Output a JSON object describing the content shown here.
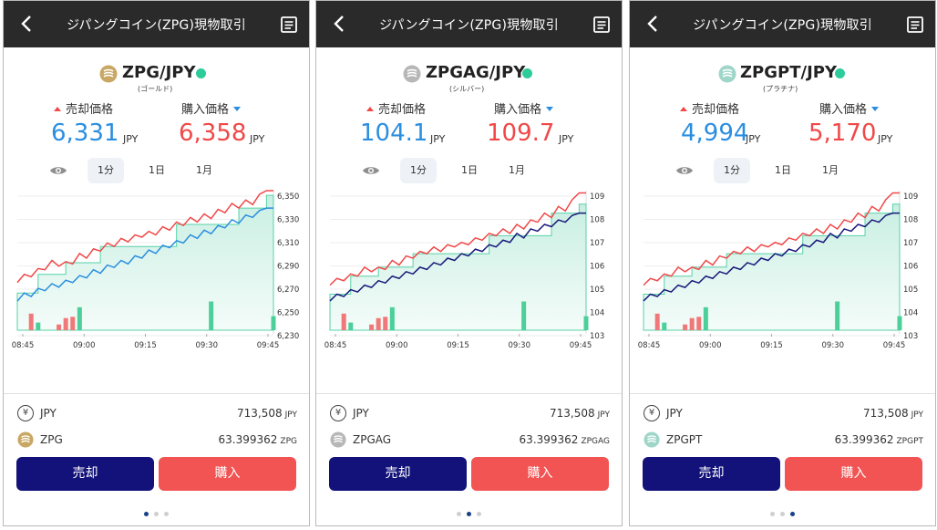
{
  "colors": {
    "header": "#2a2a2a",
    "sell": "#2a8ee0",
    "buy": "#f04848",
    "sell_button": "#12127a",
    "buy_button": "#f25454",
    "status_dot": "#2ecc9a",
    "gold": "#c9a765",
    "silver": "#b7b7b7",
    "platinum": "#9fd6c9"
  },
  "panels": [
    {
      "header": {
        "title": "ジパングコイン(ZPG)現物取引",
        "back_icon": "chevron-left-icon",
        "menu_icon": "document-icon"
      },
      "symbol": {
        "pair": "ZPG/JPY",
        "sub": "(ゴールド)",
        "coin_icon": "zpg-coin-icon"
      },
      "prices": {
        "sell_label": "売却価格",
        "buy_label": "購入価格",
        "sell_value": "6,331",
        "buy_value": "6,358",
        "unit": "JPY"
      },
      "tabs": [
        "1分",
        "1日",
        "1月"
      ],
      "chart_data": {
        "type": "line",
        "x_ticks": [
          "08:45",
          "09:00",
          "09:15",
          "09:30",
          "09:45"
        ],
        "y_ticks": [
          "6,350",
          "6,330",
          "6,310",
          "6,290",
          "6,270",
          "6,250",
          "6,230"
        ],
        "ylim": [
          6230,
          6350
        ],
        "series": [
          {
            "values": [
              6271,
              6278,
              6276,
              6283,
              6282,
              6290,
              6285,
              6289,
              6287,
              6296,
              6292,
              6300,
              6298,
              6305,
              6302,
              6309,
              6306,
              6312,
              6310,
              6315,
              6312,
              6319,
              6316,
              6323,
              6320,
              6327,
              6323,
              6330,
              6326,
              6334,
              6331,
              6339,
              6335,
              6342,
              6338,
              6347,
              6350,
              6350
            ]
          },
          {
            "values": [
              6255,
              6262,
              6259,
              6266,
              6264,
              6270,
              6267,
              6273,
              6271,
              6277,
              6275,
              6282,
              6279,
              6286,
              6284,
              6290,
              6287,
              6294,
              6292,
              6299,
              6296,
              6303,
              6301,
              6307,
              6305,
              6312,
              6309,
              6316,
              6313,
              6320,
              6318,
              6325,
              6322,
              6329,
              6327,
              6333,
              6335,
              6335
            ]
          }
        ],
        "band": [
          6262,
          6262,
          6262,
          6278,
          6278,
          6278,
          6278,
          6288,
          6288,
          6288,
          6288,
          6288,
          6302,
          6302,
          6302,
          6302,
          6302,
          6302,
          6302,
          6302,
          6302,
          6302,
          6302,
          6321,
          6321,
          6321,
          6321,
          6321,
          6321,
          6321,
          6321,
          6321,
          6335,
          6335,
          6335,
          6335,
          6346,
          6346
        ],
        "volumes": [
          0,
          2.5,
          1,
          0,
          0,
          0,
          0,
          0,
          0,
          0,
          0,
          0,
          0,
          0,
          0,
          0,
          0,
          0,
          0,
          0,
          0,
          0,
          0,
          0,
          0,
          0,
          0,
          0,
          0,
          0,
          0,
          0,
          0,
          0,
          0,
          0,
          0,
          0
        ],
        "bars": [
          {
            "i": 2,
            "v": 2.6,
            "side": "sell"
          },
          {
            "i": 3,
            "v": 1.2,
            "side": "buy"
          },
          {
            "i": 6,
            "v": 0.9,
            "side": "sell"
          },
          {
            "i": 7,
            "v": 1.9,
            "side": "sell"
          },
          {
            "i": 8,
            "v": 2.1,
            "side": "sell"
          },
          {
            "i": 9,
            "v": 3.6,
            "side": "buy"
          },
          {
            "i": 28,
            "v": 4.5,
            "side": "buy"
          },
          {
            "i": 37,
            "v": 2.2,
            "side": "buy"
          }
        ]
      },
      "balances": [
        {
          "currency": "JPY",
          "amount": "713,508",
          "unit": "JPY",
          "icon": "yen-icon"
        },
        {
          "currency": "ZPG",
          "amount": "63.399362",
          "unit": "ZPG",
          "icon": "zpg-coin-icon"
        }
      ],
      "actions": {
        "sell": "売却",
        "buy": "購入"
      },
      "pager": {
        "active": 0
      }
    },
    {
      "header": {
        "title": "ジパングコイン(ZPG)現物取引",
        "back_icon": "chevron-left-icon",
        "menu_icon": "document-icon"
      },
      "symbol": {
        "pair": "ZPGAG/JPY",
        "sub": "(シルバー)",
        "coin_icon": "zpgag-coin-icon"
      },
      "prices": {
        "sell_label": "売却価格",
        "buy_label": "購入価格",
        "sell_value": "104.1",
        "buy_value": "109.7",
        "unit": "JPY"
      },
      "tabs": [
        "1分",
        "1日",
        "1月"
      ],
      "chart_data": {
        "type": "line",
        "x_ticks": [
          "08:45",
          "09:00",
          "09:15",
          "09:30",
          "09:45"
        ],
        "y_ticks": [
          "109",
          "108",
          "107",
          "106",
          "105",
          "104",
          "103"
        ],
        "ylim": [
          103,
          109.2
        ],
        "series": [
          {
            "values": [
              105,
              105.3,
              105.2,
              105.5,
              105.4,
              105.8,
              105.6,
              105.8,
              105.7,
              106.1,
              105.9,
              106.3,
              106.2,
              106.5,
              106.4,
              106.7,
              106.5,
              106.8,
              106.7,
              106.9,
              106.8,
              107.1,
              107,
              107.3,
              107.2,
              107.5,
              107.3,
              107.7,
              107.5,
              107.9,
              107.8,
              108.2,
              108,
              108.5,
              108.3,
              108.8,
              109.1,
              109.1
            ]
          },
          {
            "values": [
              104.3,
              104.6,
              104.5,
              104.8,
              104.7,
              105,
              104.9,
              105.2,
              105.1,
              105.4,
              105.3,
              105.6,
              105.5,
              105.8,
              105.7,
              106,
              105.9,
              106.2,
              106.1,
              106.4,
              106.3,
              106.6,
              106.5,
              106.8,
              106.7,
              107,
              106.9,
              107.3,
              107.1,
              107.5,
              107.4,
              107.7,
              107.6,
              107.9,
              107.8,
              108.1,
              108.2,
              108.2
            ]
          }
        ],
        "band": [
          104.6,
          104.6,
          104.6,
          105.4,
          105.4,
          105.4,
          105.4,
          105.8,
          105.8,
          105.8,
          105.8,
          105.8,
          106.4,
          106.4,
          106.4,
          106.4,
          106.4,
          106.4,
          106.4,
          106.4,
          106.4,
          106.4,
          106.4,
          107.2,
          107.2,
          107.2,
          107.2,
          107.2,
          107.2,
          107.2,
          107.2,
          107.2,
          108.2,
          108.2,
          108.2,
          108.2,
          108.6,
          108.6
        ],
        "bars": [
          {
            "i": 2,
            "v": 2.6,
            "side": "sell"
          },
          {
            "i": 3,
            "v": 1.2,
            "side": "buy"
          },
          {
            "i": 6,
            "v": 0.9,
            "side": "sell"
          },
          {
            "i": 7,
            "v": 1.9,
            "side": "sell"
          },
          {
            "i": 8,
            "v": 2.1,
            "side": "sell"
          },
          {
            "i": 9,
            "v": 3.6,
            "side": "buy"
          },
          {
            "i": 28,
            "v": 4.5,
            "side": "buy"
          },
          {
            "i": 37,
            "v": 2.2,
            "side": "buy"
          }
        ]
      },
      "balances": [
        {
          "currency": "JPY",
          "amount": "713,508",
          "unit": "JPY",
          "icon": "yen-icon"
        },
        {
          "currency": "ZPGAG",
          "amount": "63.399362",
          "unit": "ZPGAG",
          "icon": "zpgag-coin-icon"
        }
      ],
      "actions": {
        "sell": "売却",
        "buy": "購入"
      },
      "pager": {
        "active": 1
      }
    },
    {
      "header": {
        "title": "ジパングコイン(ZPG)現物取引",
        "back_icon": "chevron-left-icon",
        "menu_icon": "document-icon"
      },
      "symbol": {
        "pair": "ZPGPT/JPY",
        "sub": "(プラチナ)",
        "coin_icon": "zpgpt-coin-icon"
      },
      "prices": {
        "sell_label": "売却価格",
        "buy_label": "購入価格",
        "sell_value": "4,994",
        "buy_value": "5,170",
        "unit": "JPY"
      },
      "tabs": [
        "1分",
        "1日",
        "1月"
      ],
      "chart_data": {
        "type": "line",
        "x_ticks": [
          "08:45",
          "09:00",
          "09:15",
          "09:30",
          "09:45"
        ],
        "y_ticks": [
          "109",
          "108",
          "107",
          "106",
          "105",
          "104",
          "103"
        ],
        "ylim": [
          103,
          109.2
        ],
        "series": [
          {
            "values": [
              105,
              105.3,
              105.2,
              105.5,
              105.4,
              105.8,
              105.6,
              105.8,
              105.7,
              106.1,
              105.9,
              106.3,
              106.2,
              106.5,
              106.4,
              106.7,
              106.5,
              106.8,
              106.7,
              106.9,
              106.8,
              107.1,
              107,
              107.3,
              107.2,
              107.5,
              107.3,
              107.7,
              107.5,
              107.9,
              107.8,
              108.2,
              108,
              108.5,
              108.3,
              108.8,
              109.1,
              109.1
            ]
          },
          {
            "values": [
              104.3,
              104.6,
              104.5,
              104.8,
              104.7,
              105,
              104.9,
              105.2,
              105.1,
              105.4,
              105.3,
              105.6,
              105.5,
              105.8,
              105.7,
              106,
              105.9,
              106.2,
              106.1,
              106.4,
              106.3,
              106.6,
              106.5,
              106.8,
              106.7,
              107,
              106.9,
              107.3,
              107.1,
              107.5,
              107.4,
              107.7,
              107.6,
              107.9,
              107.8,
              108.1,
              108.2,
              108.2
            ]
          }
        ],
        "band": [
          104.6,
          104.6,
          104.6,
          105.4,
          105.4,
          105.4,
          105.4,
          105.8,
          105.8,
          105.8,
          105.8,
          105.8,
          106.4,
          106.4,
          106.4,
          106.4,
          106.4,
          106.4,
          106.4,
          106.4,
          106.4,
          106.4,
          106.4,
          107.2,
          107.2,
          107.2,
          107.2,
          107.2,
          107.2,
          107.2,
          107.2,
          107.2,
          108.2,
          108.2,
          108.2,
          108.2,
          108.6,
          108.6
        ],
        "bars": [
          {
            "i": 2,
            "v": 2.6,
            "side": "sell"
          },
          {
            "i": 3,
            "v": 1.2,
            "side": "buy"
          },
          {
            "i": 6,
            "v": 0.9,
            "side": "sell"
          },
          {
            "i": 7,
            "v": 1.9,
            "side": "sell"
          },
          {
            "i": 8,
            "v": 2.1,
            "side": "sell"
          },
          {
            "i": 9,
            "v": 3.6,
            "side": "buy"
          },
          {
            "i": 28,
            "v": 4.5,
            "side": "buy"
          },
          {
            "i": 37,
            "v": 2.2,
            "side": "buy"
          }
        ]
      },
      "balances": [
        {
          "currency": "JPY",
          "amount": "713,508",
          "unit": "JPY",
          "icon": "yen-icon"
        },
        {
          "currency": "ZPGPT",
          "amount": "63.399362",
          "unit": "ZPGPT",
          "icon": "zpgpt-coin-icon"
        }
      ],
      "actions": {
        "sell": "売却",
        "buy": "購入"
      },
      "pager": {
        "active": 2
      }
    }
  ]
}
